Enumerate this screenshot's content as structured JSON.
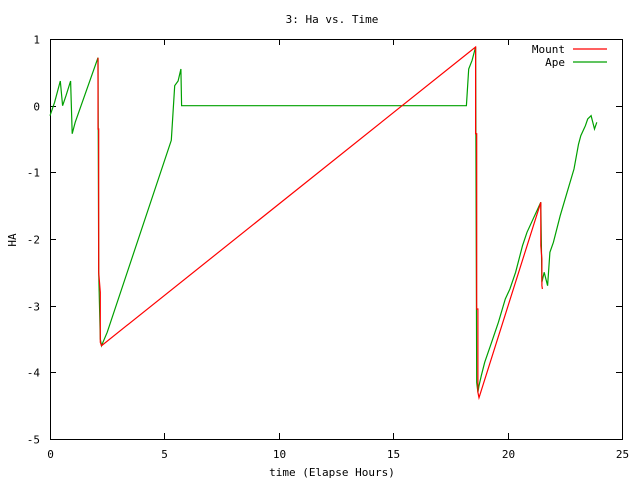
{
  "chart_data": {
    "type": "line",
    "title": "3: Ha vs. Time",
    "xlabel": "time (Elapse Hours)",
    "ylabel": "HA",
    "xlim": [
      0,
      25
    ],
    "ylim": [
      -5,
      1
    ],
    "xticks": [
      0,
      5,
      10,
      15,
      20,
      25
    ],
    "yticks": [
      1,
      0,
      -1,
      -2,
      -3,
      -4,
      -5
    ],
    "grid": false,
    "legend_position": "top-right",
    "series": [
      {
        "name": "Mount",
        "color": "#ff0000",
        "x": [
          2.1,
          2.1,
          2.1,
          2.13,
          2.13,
          2.13,
          2.2,
          2.2,
          2.2,
          2.25,
          18.6,
          18.6,
          18.6,
          18.65,
          18.65,
          18.65,
          18.7,
          18.7,
          18.75,
          21.45,
          21.45,
          21.45,
          21.5,
          21.5,
          21.52
        ],
        "y": [
          0.72,
          -0.1,
          -0.35,
          -0.35,
          -1.75,
          -2.5,
          -2.8,
          -3.3,
          -3.55,
          -3.6,
          0.88,
          -0.2,
          -0.42,
          -0.42,
          -2.6,
          -3.05,
          -3.05,
          -4.3,
          -4.38,
          -1.45,
          -1.75,
          -2.1,
          -2.3,
          -2.7,
          -2.75
        ]
      },
      {
        "name": "Ape",
        "color": "#00a000",
        "x": [
          0,
          0.2,
          0.45,
          0.55,
          0.7,
          0.9,
          0.97,
          1.1,
          2.1,
          2.13,
          2.2,
          2.25,
          2.5,
          5.3,
          5.45,
          5.6,
          5.72,
          5.75,
          18.1,
          18.2,
          18.3,
          18.45,
          18.6,
          18.65,
          18.7,
          18.75,
          18.85,
          19.0,
          19.3,
          19.6,
          19.9,
          20.1,
          20.35,
          20.65,
          20.85,
          21.45,
          21.5,
          21.6,
          21.75,
          21.85,
          22.0,
          22.3,
          22.6,
          22.9,
          23.1,
          23.2,
          23.4,
          23.5,
          23.65,
          23.8,
          23.9
        ],
        "y": [
          -0.15,
          0.05,
          0.37,
          0.0,
          0.15,
          0.37,
          -0.42,
          -0.25,
          0.72,
          -2.5,
          -3.5,
          -3.6,
          -3.4,
          -0.52,
          0.3,
          0.37,
          0.55,
          0.0,
          0.0,
          0.0,
          0.55,
          0.68,
          0.88,
          -4.15,
          -4.3,
          -4.2,
          -4.05,
          -3.85,
          -3.55,
          -3.25,
          -2.9,
          -2.75,
          -2.5,
          -2.1,
          -1.9,
          -1.45,
          -2.65,
          -2.5,
          -2.7,
          -2.2,
          -2.05,
          -1.65,
          -1.3,
          -0.95,
          -0.58,
          -0.45,
          -0.3,
          -0.2,
          -0.15,
          -0.35,
          -0.25
        ]
      }
    ]
  }
}
